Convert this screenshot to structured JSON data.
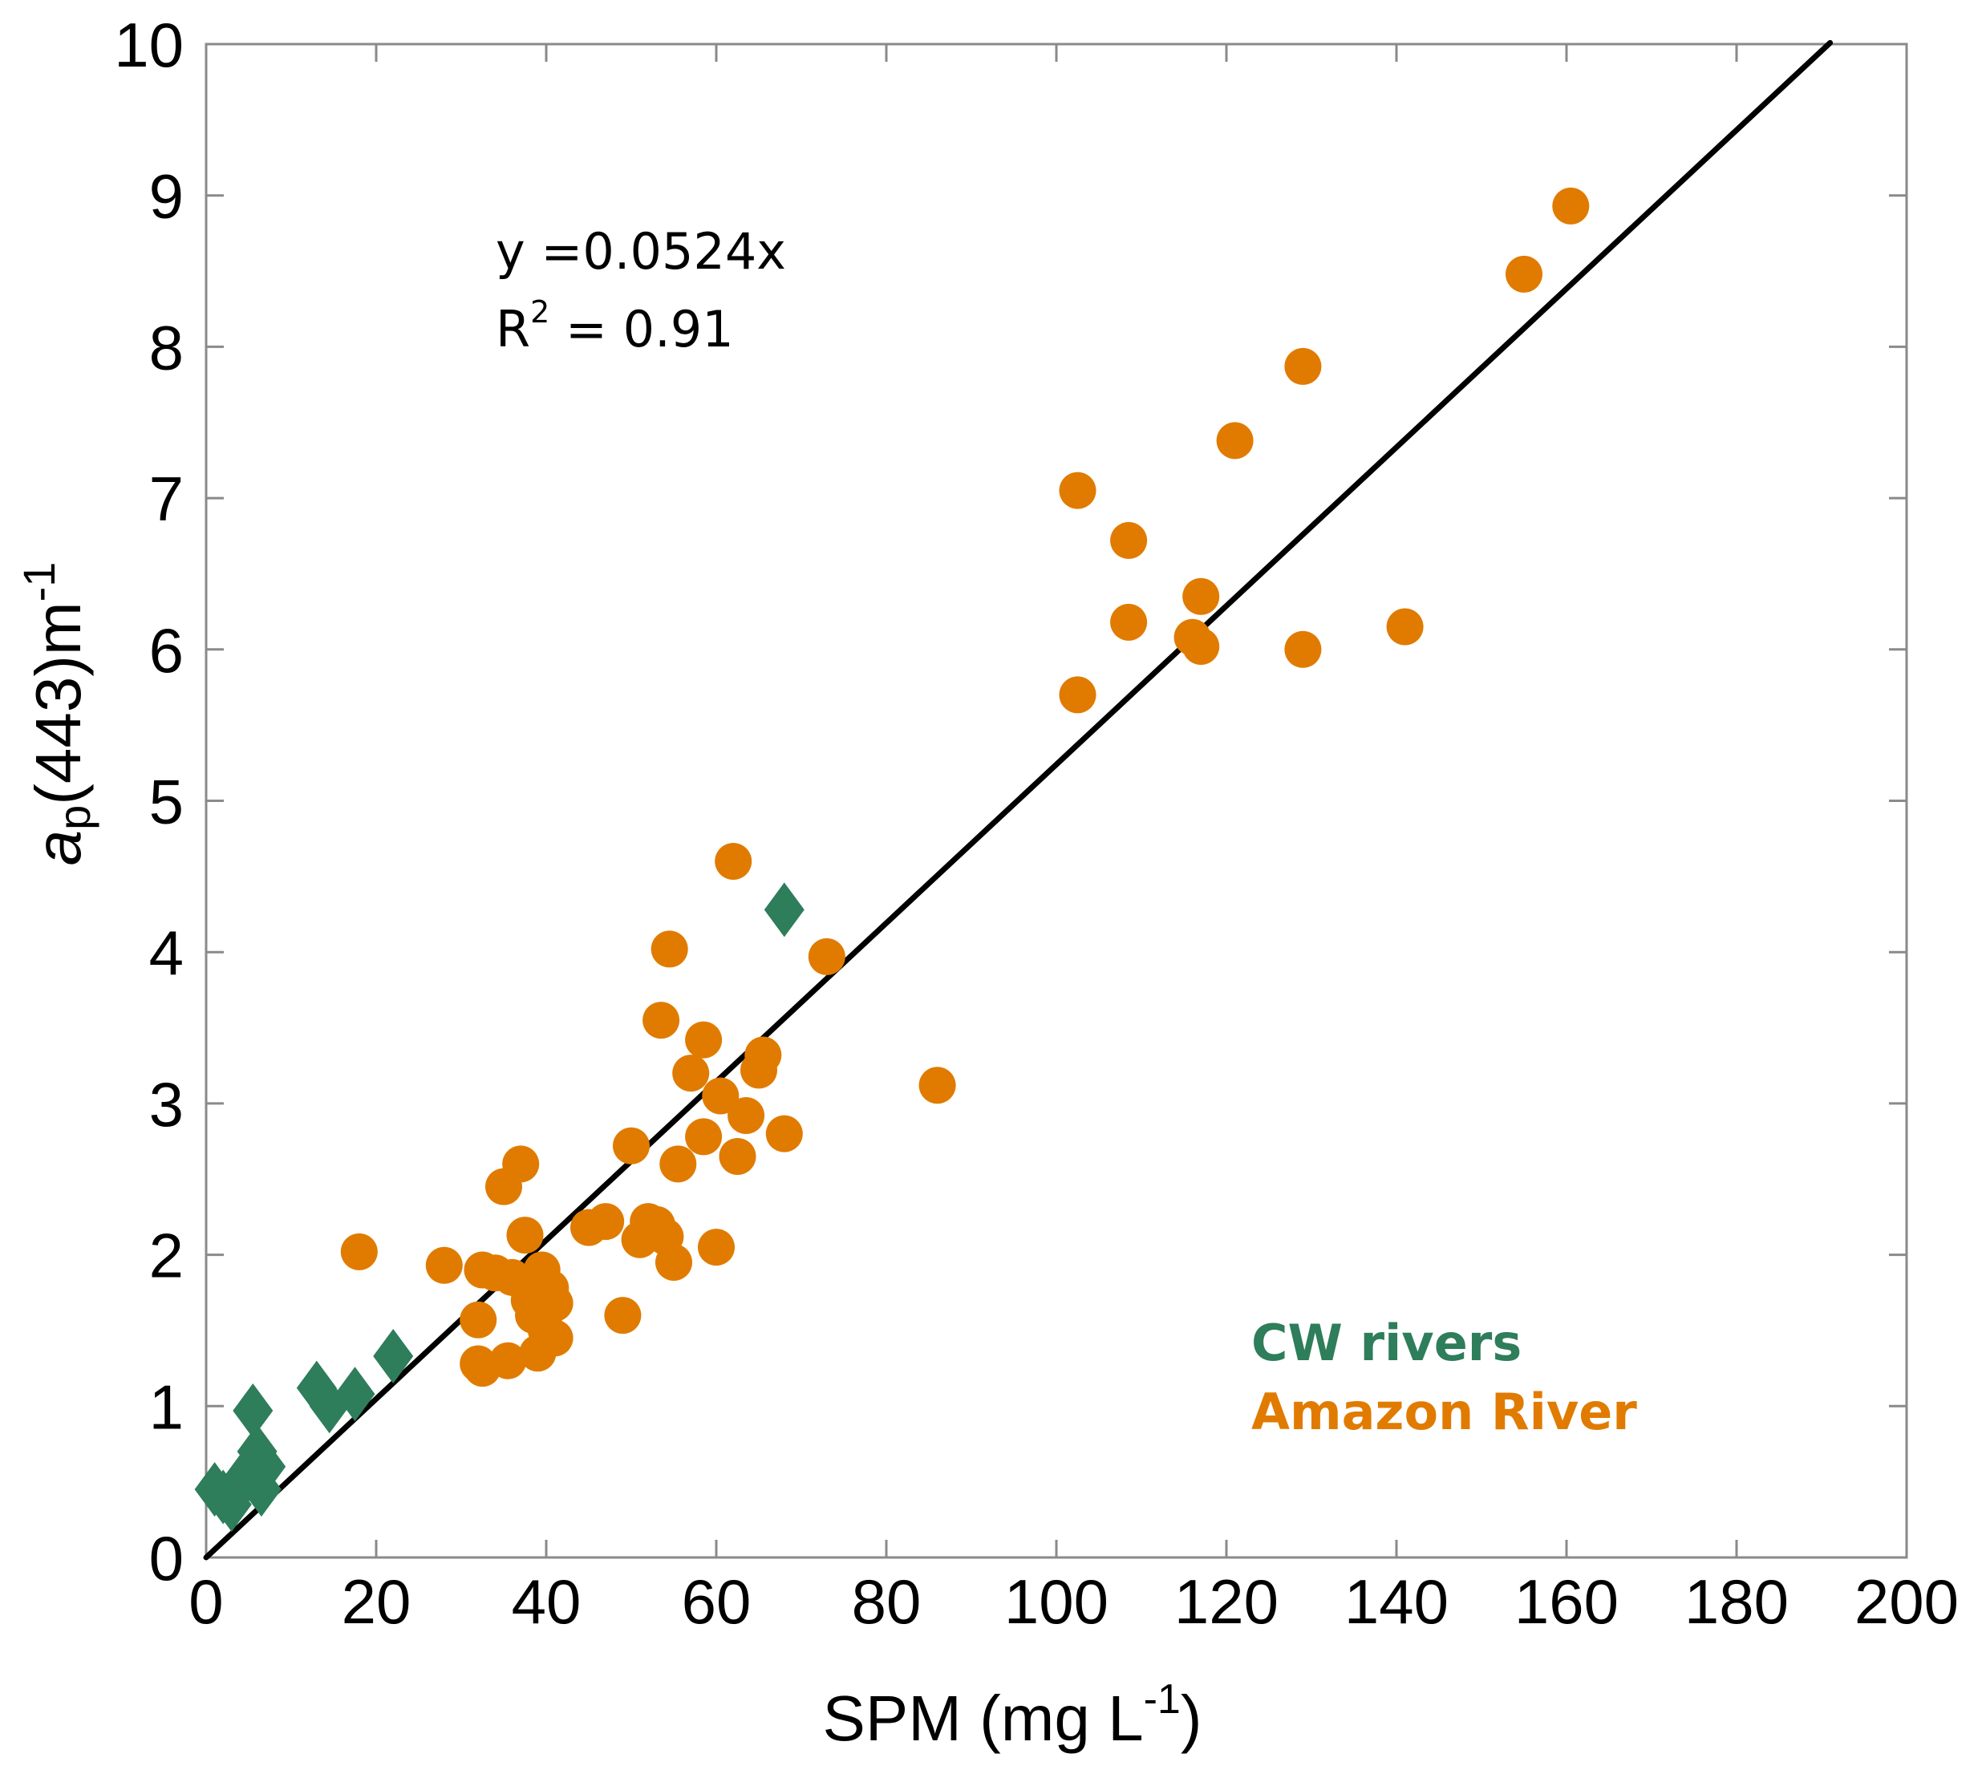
{
  "chart_data": {
    "type": "scatter",
    "title": "",
    "xlabel": {
      "main": "SPM (mg L",
      "sup": "-1",
      "close": ")"
    },
    "ylabel": {
      "italic": "a",
      "sub": "p",
      "main": "(443)m",
      "sup": "-1"
    },
    "xlim": [
      0,
      200
    ],
    "ylim": [
      0,
      10
    ],
    "xticks": [
      0,
      20,
      40,
      60,
      80,
      100,
      120,
      140,
      160,
      180,
      200
    ],
    "yticks": [
      0,
      1,
      2,
      3,
      4,
      5,
      6,
      7,
      8,
      9,
      10
    ],
    "grid": false,
    "legend_position": "bottom-right",
    "annotation": {
      "equation": "y =0.0524x",
      "r2_prefix": "R",
      "r2_sup": "2",
      "r2_suffix": " = 0.91"
    },
    "fit_line": {
      "slope": 0.0524,
      "intercept": 0,
      "x_range": [
        0,
        191
      ]
    },
    "series": [
      {
        "name": "CW rivers",
        "color": "#2e7d5b",
        "marker": "diamond",
        "points": [
          [
            1,
            0.45
          ],
          [
            2,
            0.4
          ],
          [
            3,
            0.35
          ],
          [
            4,
            0.5
          ],
          [
            5,
            0.55
          ],
          [
            5.5,
            0.97
          ],
          [
            6,
            0.7
          ],
          [
            6.5,
            0.45
          ],
          [
            7,
            0.6
          ],
          [
            13,
            1.12
          ],
          [
            14.5,
            1.0
          ],
          [
            17.5,
            1.08
          ],
          [
            22,
            1.33
          ],
          [
            68,
            4.28
          ]
        ]
      },
      {
        "name": "Amazon River",
        "color": "#e07b00",
        "marker": "circle",
        "points": [
          [
            18,
            2.02
          ],
          [
            28,
            1.93
          ],
          [
            32,
            1.57
          ],
          [
            32,
            1.28
          ],
          [
            32.5,
            1.25
          ],
          [
            32.5,
            1.9
          ],
          [
            34,
            1.88
          ],
          [
            35,
            2.45
          ],
          [
            35.5,
            1.3
          ],
          [
            36,
            1.85
          ],
          [
            37,
            2.6
          ],
          [
            37.5,
            2.13
          ],
          [
            38,
            1.7
          ],
          [
            38.5,
            1.6
          ],
          [
            39,
            1.35
          ],
          [
            39.5,
            1.9
          ],
          [
            40,
            1.5
          ],
          [
            40.5,
            1.78
          ],
          [
            41,
            1.45
          ],
          [
            41,
            1.68
          ],
          [
            45,
            2.18
          ],
          [
            47,
            2.22
          ],
          [
            49,
            1.6
          ],
          [
            50,
            2.72
          ],
          [
            51,
            2.1
          ],
          [
            52,
            2.22
          ],
          [
            53,
            2.2
          ],
          [
            53.5,
            3.55
          ],
          [
            54,
            2.12
          ],
          [
            54.5,
            4.02
          ],
          [
            55,
            1.95
          ],
          [
            55.5,
            2.6
          ],
          [
            57,
            3.2
          ],
          [
            58.5,
            2.78
          ],
          [
            58.5,
            3.42
          ],
          [
            60,
            2.05
          ],
          [
            60.5,
            3.05
          ],
          [
            62,
            4.6
          ],
          [
            62.5,
            2.65
          ],
          [
            63.5,
            2.92
          ],
          [
            65,
            3.22
          ],
          [
            65.5,
            3.32
          ],
          [
            68,
            2.8
          ],
          [
            73,
            3.97
          ],
          [
            86,
            3.12
          ],
          [
            102.5,
            7.05
          ],
          [
            102.5,
            5.7
          ],
          [
            108.5,
            6.72
          ],
          [
            108.5,
            6.18
          ],
          [
            116,
            6.08
          ],
          [
            117,
            6.02
          ],
          [
            117,
            6.35
          ],
          [
            121,
            7.38
          ],
          [
            129,
            7.87
          ],
          [
            129,
            6.0
          ],
          [
            141,
            6.15
          ],
          [
            155,
            8.48
          ],
          [
            160.5,
            8.93
          ]
        ]
      }
    ]
  }
}
